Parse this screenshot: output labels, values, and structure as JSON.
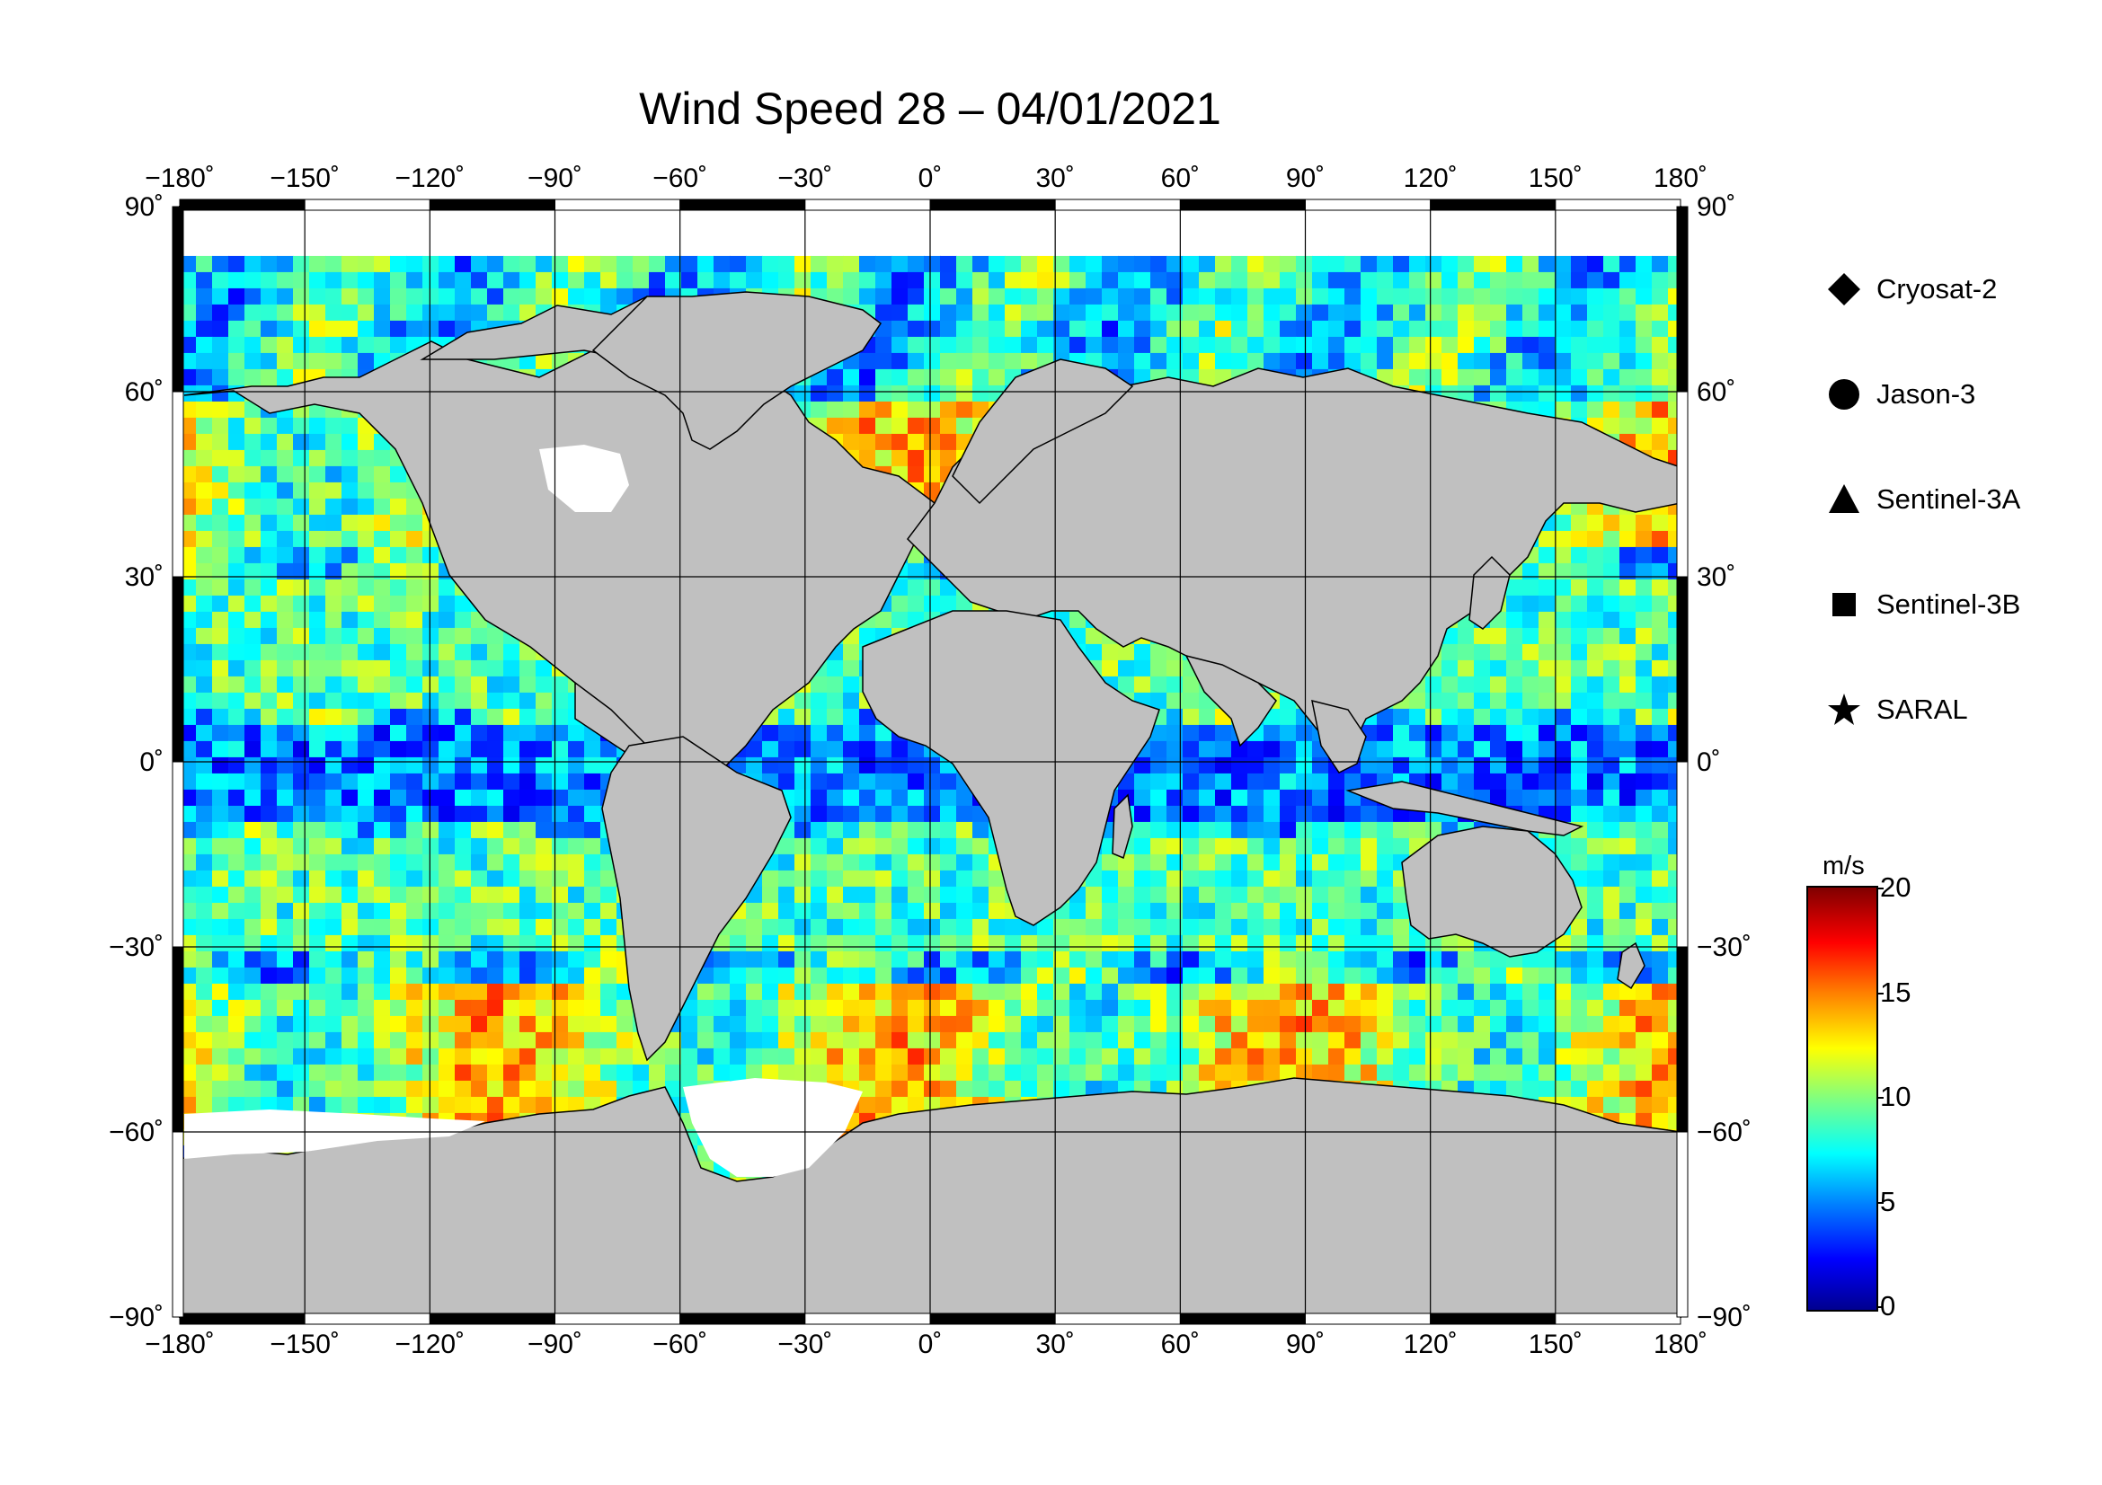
{
  "title": "Wind Speed 28 – 04/01/2021",
  "map": {
    "lon_ticks": [
      "−180˚",
      "−150˚",
      "−120˚",
      "−90˚",
      "−60˚",
      "−30˚",
      "0˚",
      "30˚",
      "60˚",
      "90˚",
      "120˚",
      "150˚",
      "180˚"
    ],
    "lat_ticks": [
      "90˚",
      "60˚",
      "30˚",
      "0˚",
      "−30˚",
      "−60˚",
      "−90˚"
    ],
    "lon_range": [
      -180,
      180
    ],
    "lat_range": [
      -90,
      90
    ],
    "grid_interval_deg": 30,
    "land_color": "#c0c0c0",
    "ice_color": "#ffffff"
  },
  "legend": {
    "items": [
      {
        "label": "Cryosat-2",
        "symbol": "diamond"
      },
      {
        "label": "Jason-3",
        "symbol": "circle"
      },
      {
        "label": "Sentinel-3A",
        "symbol": "triangle"
      },
      {
        "label": "Sentinel-3B",
        "symbol": "square"
      },
      {
        "label": "SARAL",
        "symbol": "star"
      }
    ]
  },
  "colorbar": {
    "unit": "m/s",
    "ticks": [
      "20",
      "15",
      "10",
      "5",
      "0"
    ],
    "range": [
      0,
      20
    ]
  }
}
